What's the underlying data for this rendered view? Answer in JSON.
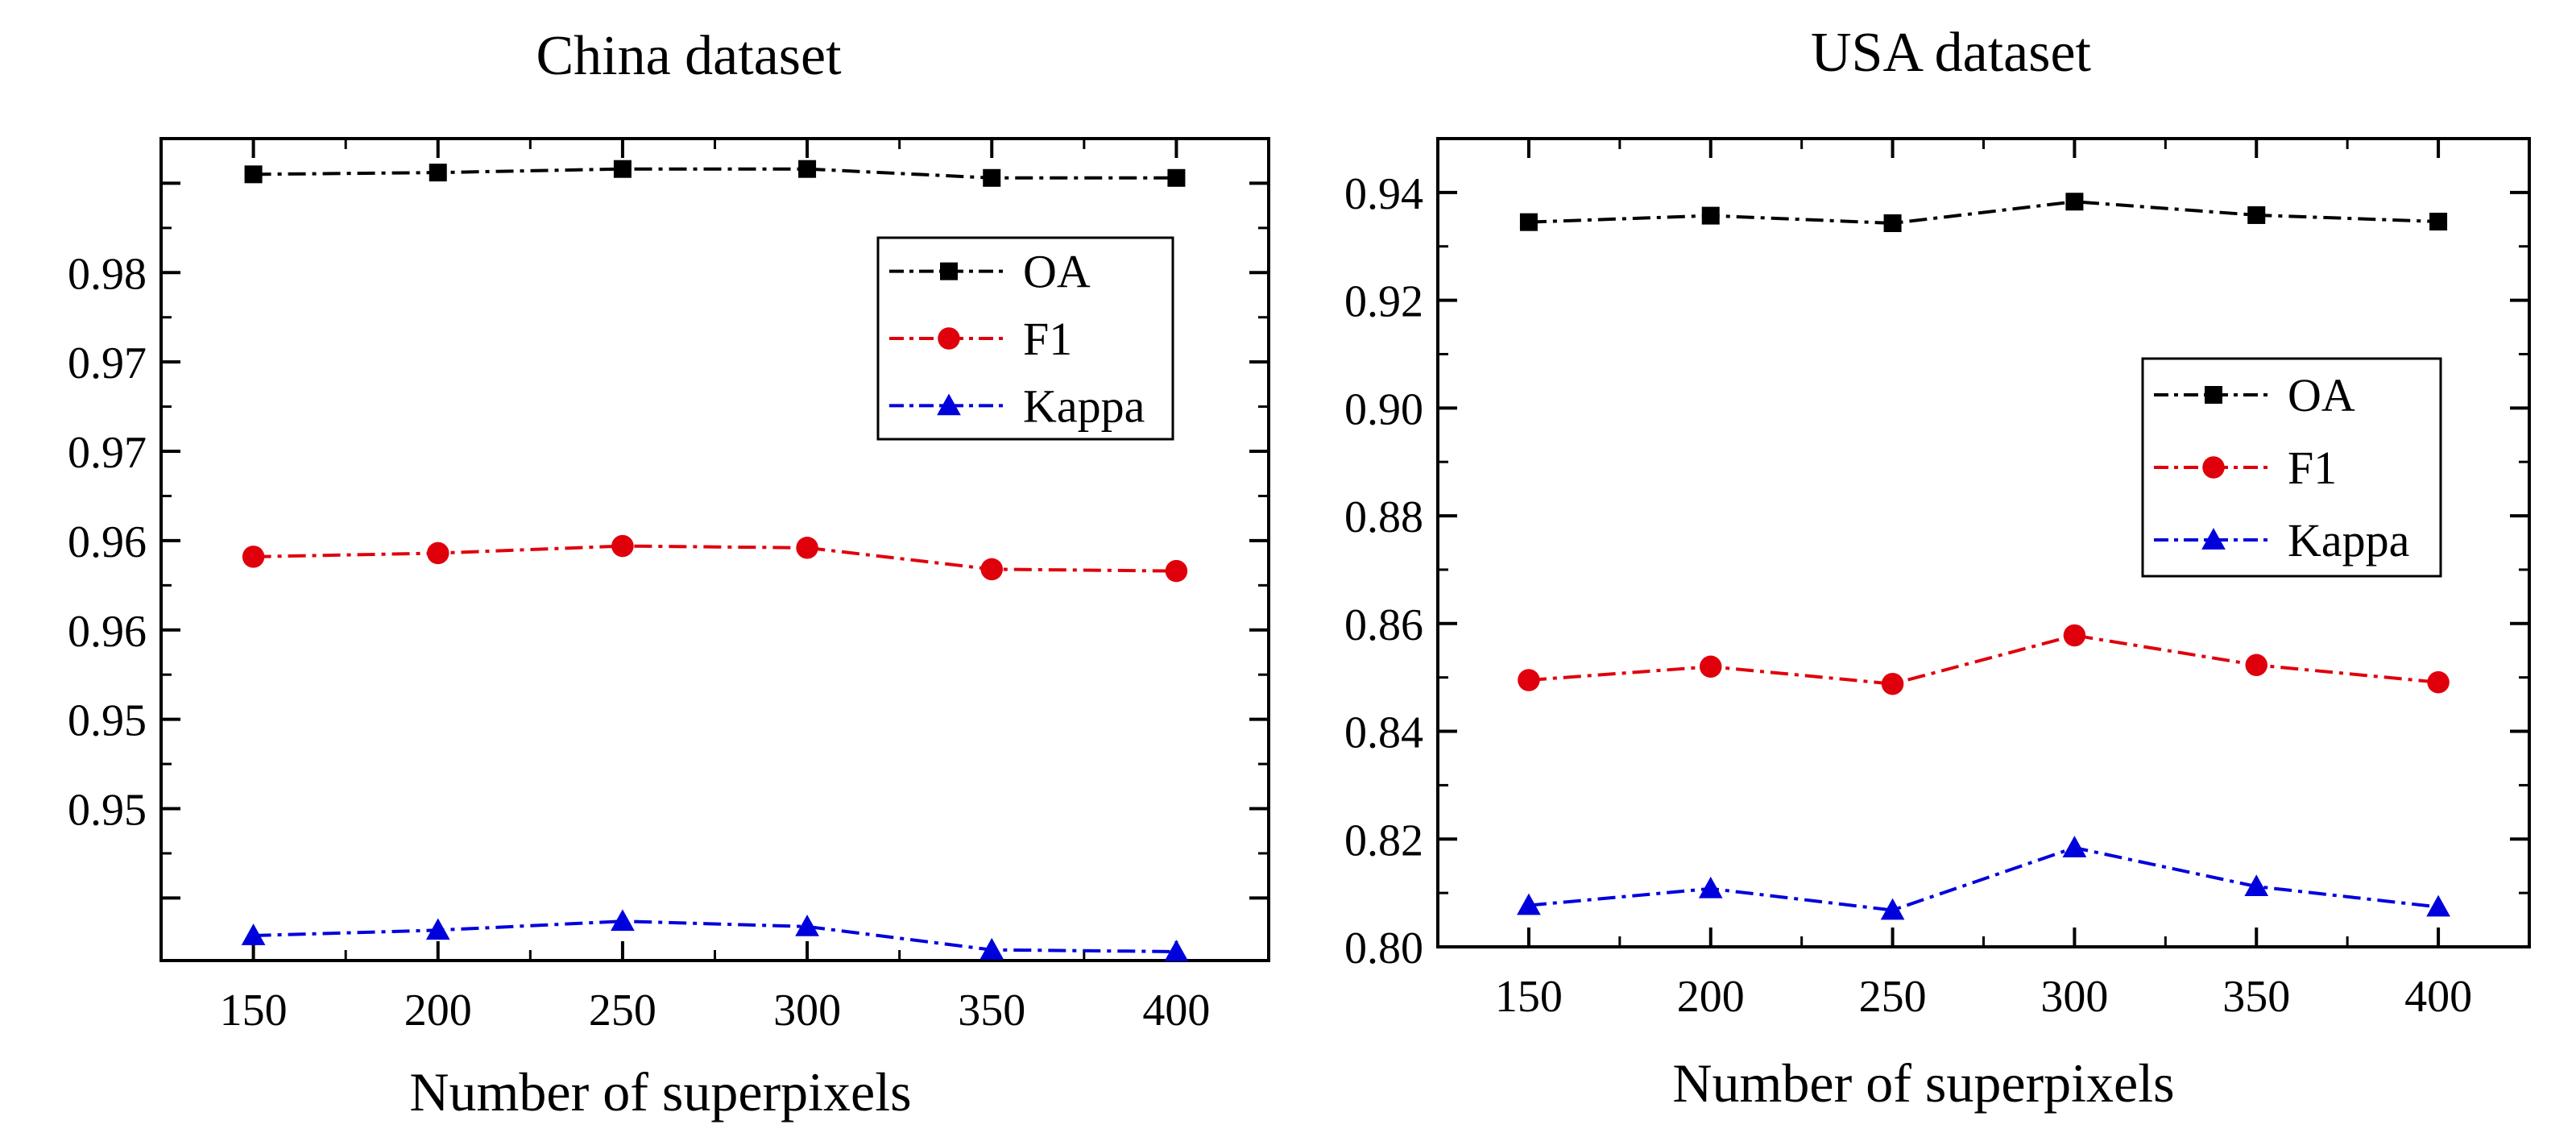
{
  "chart_data": [
    {
      "type": "line",
      "title": "China dataset",
      "xlabel": "Number of superpixels",
      "ylabel": "",
      "categories": [
        150,
        200,
        250,
        300,
        350,
        400
      ],
      "xlim": [
        125,
        425
      ],
      "ylim": [
        0.9415,
        0.9875
      ],
      "yticks": [
        0.945,
        0.95,
        0.955,
        0.96,
        0.965,
        0.97,
        0.975,
        0.98,
        0.985
      ],
      "ytick_labels": [
        "",
        "0.95",
        "0.95",
        "0.96",
        "0.96",
        "0.97",
        "0.97",
        "0.98",
        ""
      ],
      "xtick_labels": [
        "150",
        "200",
        "250",
        "300",
        "350",
        "400"
      ],
      "legend_position": "top-right",
      "series": [
        {
          "name": "OA",
          "color": "#000000",
          "marker": "square",
          "values": [
            0.9855,
            0.9856,
            0.9858,
            0.9858,
            0.9853,
            0.9853
          ]
        },
        {
          "name": "F1",
          "color": "#e0000c",
          "marker": "circle",
          "values": [
            0.9641,
            0.9643,
            0.9647,
            0.9646,
            0.9634,
            0.9633
          ]
        },
        {
          "name": "Kappa",
          "color": "#0000dd",
          "marker": "triangle",
          "values": [
            0.9429,
            0.9432,
            0.9437,
            0.9434,
            0.9421,
            0.942
          ]
        }
      ]
    },
    {
      "type": "line",
      "title": "USA dataset",
      "xlabel": "Number of  superpixels",
      "ylabel": "",
      "categories": [
        150,
        200,
        250,
        300,
        350,
        400
      ],
      "xlim": [
        125,
        425
      ],
      "ylim": [
        0.8,
        0.95
      ],
      "yticks": [
        0.8,
        0.82,
        0.84,
        0.86,
        0.88,
        0.9,
        0.92,
        0.94
      ],
      "ytick_labels": [
        "0.80",
        "0.82",
        "0.84",
        "0.86",
        "0.88",
        "0.90",
        "0.92",
        "0.94"
      ],
      "xtick_labels": [
        "150",
        "200",
        "250",
        "300",
        "350",
        "400"
      ],
      "legend_position": "center-right",
      "series": [
        {
          "name": "OA",
          "color": "#000000",
          "marker": "square",
          "values": [
            0.9345,
            0.9357,
            0.9343,
            0.9383,
            0.9358,
            0.9346
          ]
        },
        {
          "name": "F1",
          "color": "#e0000c",
          "marker": "circle",
          "values": [
            0.8495,
            0.852,
            0.8488,
            0.8578,
            0.8523,
            0.8491
          ]
        },
        {
          "name": "Kappa",
          "color": "#0000dd",
          "marker": "triangle",
          "values": [
            0.8077,
            0.8108,
            0.8068,
            0.8184,
            0.8112,
            0.8074
          ]
        }
      ]
    }
  ]
}
